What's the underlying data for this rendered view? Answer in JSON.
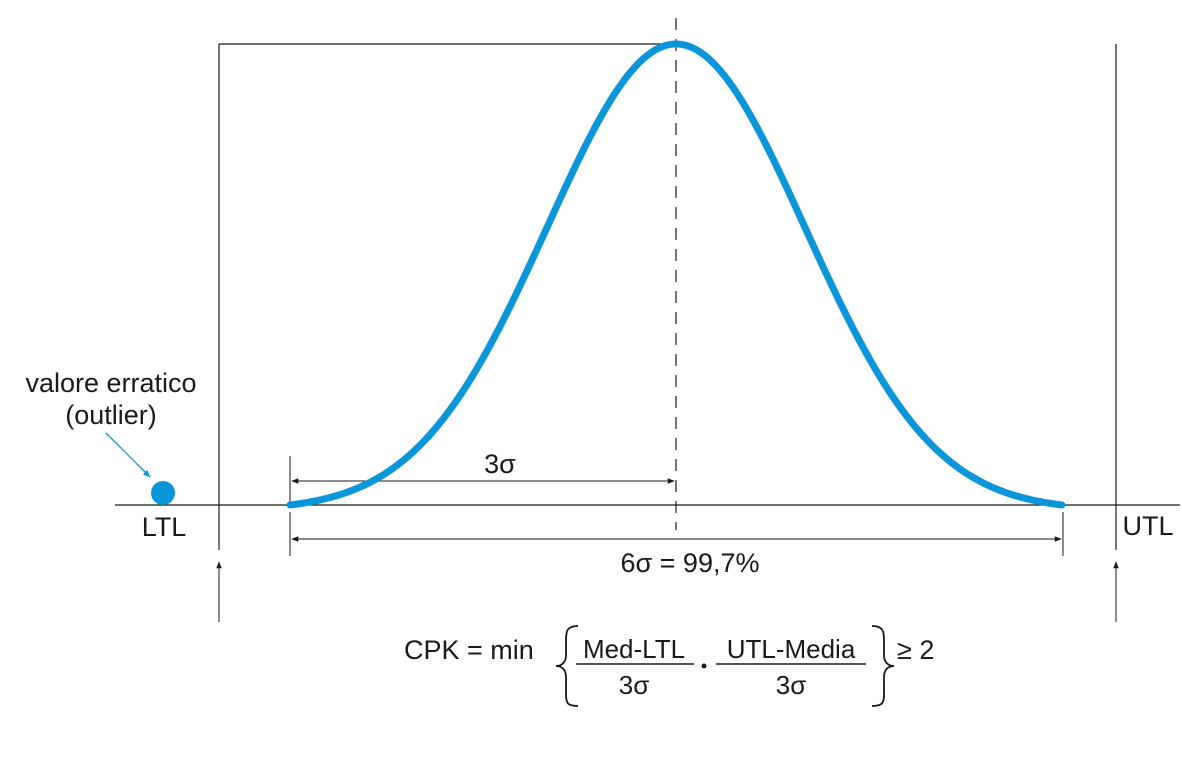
{
  "labels": {
    "outlier_line1": "valore erratico",
    "outlier_line2": "(outlier)",
    "ltl": "LTL",
    "utl": "UTL",
    "three_sigma": "3σ",
    "six_sigma": "6σ = 99,7%"
  },
  "formula": {
    "lhs": "CPK = min",
    "frac1_num": "Med-LTL",
    "frac1_den": "3σ",
    "frac2_num": "UTL-Media",
    "frac2_den": "3σ",
    "rhs": "≥ 2"
  },
  "colors": {
    "curve": "#0a96d8",
    "outlier": "#0a96d8",
    "lines": "#1a1a1a"
  }
}
